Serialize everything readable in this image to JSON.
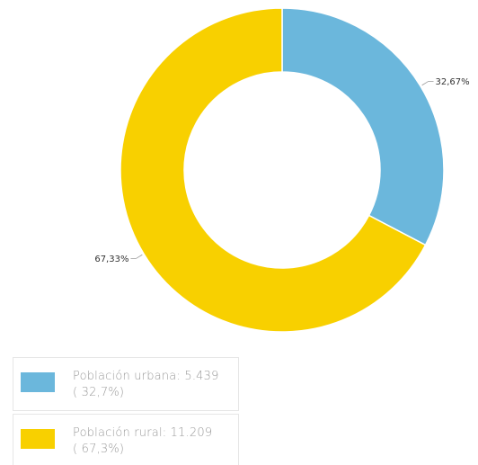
{
  "chart_data": {
    "type": "pie",
    "variant": "donut",
    "slices": [
      {
        "name": "Población urbana",
        "value": 5439,
        "percent": 32.67,
        "label": "32,67%",
        "color": "#6bb7dc",
        "label_side": "right"
      },
      {
        "name": "Población rural",
        "value": 11209,
        "percent": 67.33,
        "label": "67,33%",
        "color": "#f8d000",
        "label_side": "left"
      }
    ],
    "start_angle": "top",
    "direction": "clockwise"
  },
  "legend": {
    "items": [
      {
        "line1": "Población urbana: 5.439",
        "line2": "( 32,7%)",
        "color": "#6bb7dc"
      },
      {
        "line1": "Población rural: 11.209",
        "line2": "( 67,3%)",
        "color": "#f8d000"
      }
    ]
  }
}
